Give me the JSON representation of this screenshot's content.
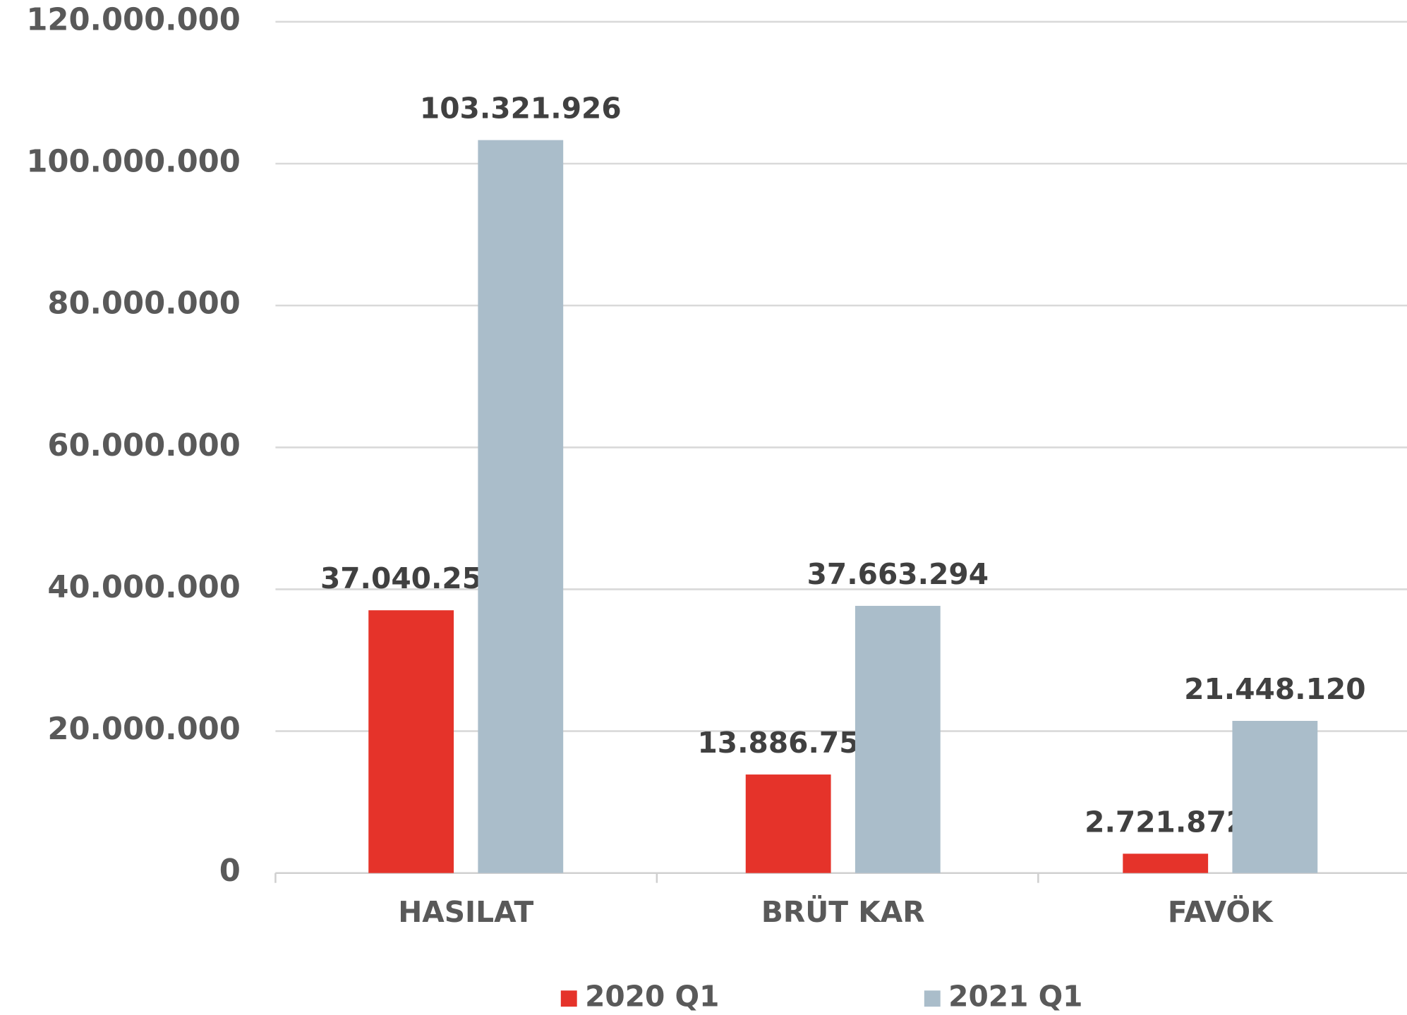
{
  "chart_data": {
    "type": "bar",
    "categories": [
      "HASILAT",
      "BRÜT KAR",
      "FAVÖK"
    ],
    "series": [
      {
        "name": "2020 Q1",
        "color": "#e5332a",
        "values": [
          37040257,
          13886751,
          2721872
        ],
        "value_labels": [
          "37.040.257",
          "13.886.751",
          "2.721.872"
        ]
      },
      {
        "name": "2021 Q1",
        "color": "#aabdca",
        "values": [
          103321926,
          37663294,
          21448120
        ],
        "value_labels": [
          "103.321.926",
          "37.663.294",
          "21.448.120"
        ]
      }
    ],
    "ylim": [
      0,
      120000000
    ],
    "yticks": [
      0,
      {
        "value": 20000000,
        "label": "20.000.000"
      },
      {
        "value": 40000000,
        "label": "40.000.000"
      },
      {
        "value": 60000000,
        "label": "60.000.000"
      },
      {
        "value": 80000000,
        "label": "80.000.000"
      },
      {
        "value": 100000000,
        "label": "100.000.000"
      },
      {
        "value": 120000000,
        "label": "120.000.000"
      }
    ],
    "grid": true,
    "legend": "bottom"
  }
}
